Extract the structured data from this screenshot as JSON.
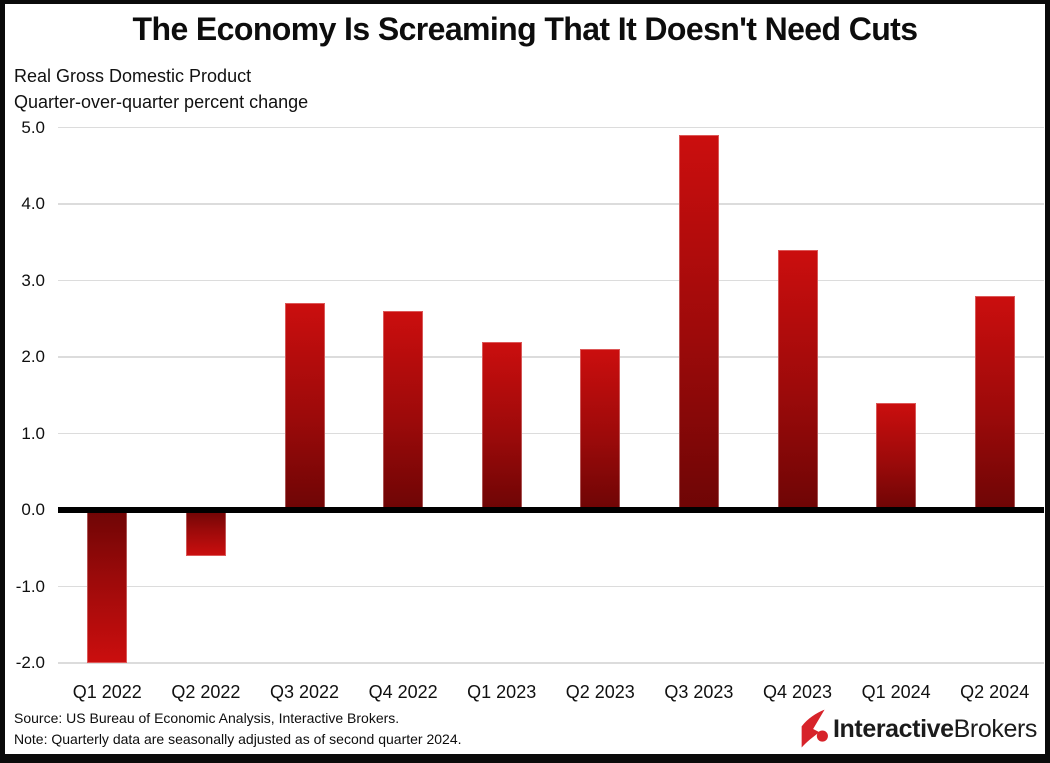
{
  "chart_data": {
    "type": "bar",
    "title": "The Economy Is Screaming That It Doesn't Need Cuts",
    "subtitle": [
      "Real Gross Domestic Product",
      "Quarter-over-quarter percent change"
    ],
    "categories": [
      "Q1 2022",
      "Q2 2022",
      "Q3 2022",
      "Q4 2022",
      "Q1 2023",
      "Q2 2023",
      "Q3 2023",
      "Q4 2023",
      "Q1 2024",
      "Q2 2024"
    ],
    "values": [
      -2.0,
      -0.6,
      2.7,
      2.6,
      2.2,
      2.1,
      4.9,
      3.4,
      1.4,
      2.8
    ],
    "ylabel": "",
    "xlabel": "",
    "ylim": [
      -2.0,
      5.0
    ],
    "yticks": [
      5.0,
      4.0,
      3.0,
      2.0,
      1.0,
      0.0,
      -1.0,
      -2.0
    ],
    "ytick_labels": [
      "5.0",
      "4.0",
      "3.0",
      "2.0",
      "1.0",
      "0.0",
      "-1.0",
      "-2.0"
    ],
    "grid": true,
    "legend": "none",
    "bar_tip_color": "#cb0e0e",
    "bar_base_color": "#6e0505",
    "gridline_color": "#dcdcdc",
    "zero_line_color": "#000000"
  },
  "footer": {
    "source": "Source: US Bureau of Economic Analysis, Interactive Brokers.",
    "note": "Note: Quarterly data are seasonally adjusted as of second quarter 2024."
  },
  "logo": {
    "icon": "interactive-brokers-mark",
    "icon_color": "#d7232a",
    "brand_bold": "Interactive",
    "brand_regular": "Brokers"
  }
}
